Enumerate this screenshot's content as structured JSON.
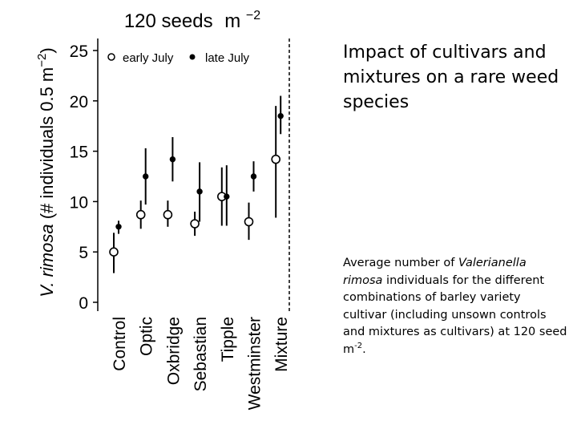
{
  "chart_data": {
    "type": "scatter",
    "title": "120 seeds",
    "title_unit": "m",
    "title_unit_exp": "−2",
    "ylabel_species": "V. rimosa",
    "ylabel_rest": " (# individuals 0.5 m",
    "ylabel_exp": "−2",
    "ylabel_close": ")",
    "ylim": [
      0,
      25
    ],
    "yticks": [
      "0",
      "5",
      "10",
      "15",
      "20",
      "25"
    ],
    "categories": [
      "Control",
      "Optic",
      "Oxbridge",
      "Sebastian",
      "Tipple",
      "Westminster",
      "Mixture"
    ],
    "legend_position": "top-left",
    "grid": false,
    "series": [
      {
        "name": "early July",
        "marker": "open-circle",
        "values": [
          5.0,
          8.7,
          8.7,
          7.8,
          10.5,
          8.0,
          14.2
        ],
        "lower": [
          2.9,
          7.3,
          7.5,
          6.6,
          7.6,
          6.2,
          8.4
        ],
        "upper": [
          6.9,
          10.1,
          10.1,
          9.0,
          13.4,
          9.9,
          19.5
        ]
      },
      {
        "name": "late July",
        "marker": "filled-circle",
        "values": [
          7.5,
          12.5,
          14.2,
          11.0,
          10.5,
          12.5,
          18.5
        ],
        "lower": [
          6.8,
          9.7,
          12.0,
          8.0,
          7.6,
          11.0,
          16.7
        ],
        "upper": [
          8.1,
          15.3,
          16.4,
          13.9,
          13.6,
          14.0,
          20.5
        ]
      }
    ]
  },
  "slide": {
    "title": "Impact of cultivars and mixtures on a rare weed species",
    "caption_prefix": "Average number of ",
    "caption_species": "Valerianella rimosa",
    "caption_suffix": " individuals for the different combinations of barley variety cultivar (including unsown controls and mixtures as cultivars) at 120 seed m",
    "caption_exp": "-2",
    "caption_end": "."
  }
}
